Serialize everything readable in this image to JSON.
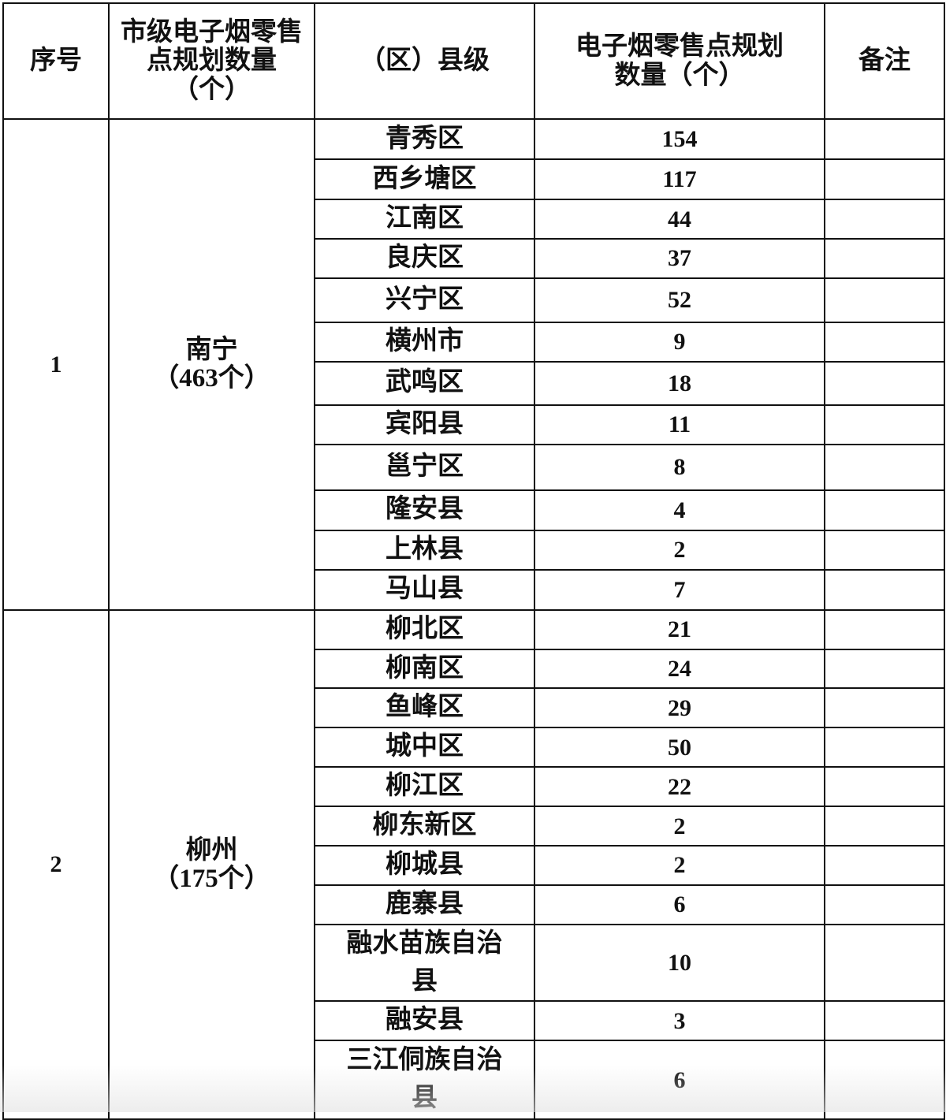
{
  "headers": {
    "index": "序号",
    "city_total": "市级电子烟零售点规划数量（个）",
    "county": "（区）县级",
    "county_count": "电子烟零售点规划数量（个）",
    "remarks": "备注"
  },
  "groups": [
    {
      "index": "1",
      "city": "南宁",
      "city_total": "（463个）",
      "rows": [
        {
          "county": "青秀区",
          "count": "154"
        },
        {
          "county": "西乡塘区",
          "count": "117"
        },
        {
          "county": "江南区",
          "count": "44"
        },
        {
          "county": "良庆区",
          "count": "37"
        },
        {
          "county": "兴宁区",
          "count": "52"
        },
        {
          "county": "横州市",
          "count": "9"
        },
        {
          "county": "武鸣区",
          "count": "18"
        },
        {
          "county": "宾阳县",
          "count": "11"
        },
        {
          "county": "邕宁区",
          "count": "8"
        },
        {
          "county": "隆安县",
          "count": "4"
        },
        {
          "county": "上林县",
          "count": "2"
        },
        {
          "county": "马山县",
          "count": "7"
        }
      ]
    },
    {
      "index": "2",
      "city": "柳州",
      "city_total": "（175个）",
      "rows": [
        {
          "county": "柳北区",
          "count": "21"
        },
        {
          "county": "柳南区",
          "count": "24"
        },
        {
          "county": "鱼峰区",
          "count": "29"
        },
        {
          "county": "城中区",
          "count": "50"
        },
        {
          "county": "柳江区",
          "count": "22"
        },
        {
          "county": "柳东新区",
          "count": "2"
        },
        {
          "county": "柳城县",
          "count": "2"
        },
        {
          "county": "鹿寨县",
          "count": "6"
        },
        {
          "county": "融水苗族自治县",
          "count": "10"
        },
        {
          "county": "融安县",
          "count": "3"
        },
        {
          "county": "三江侗族自治县",
          "count": "6"
        }
      ]
    }
  ]
}
